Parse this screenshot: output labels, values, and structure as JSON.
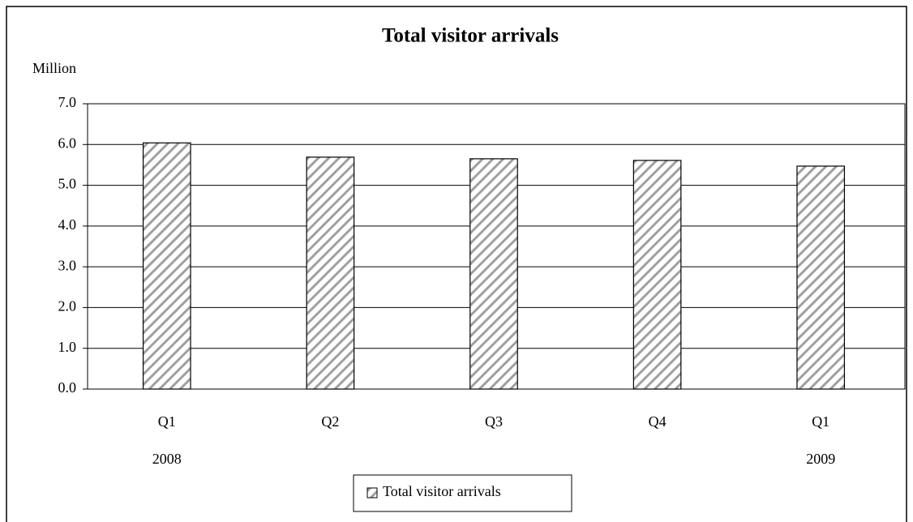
{
  "chart_data": {
    "type": "bar",
    "title": "Total visitor arrivals",
    "y_axis_label": "Million",
    "categories": [
      "Q1",
      "Q2",
      "Q3",
      "Q4",
      "Q1"
    ],
    "years": [
      "2008",
      null,
      null,
      null,
      "2009"
    ],
    "series": [
      {
        "name": "Total visitor arrivals",
        "color": "#a0a0a0",
        "values": [
          6.04,
          5.69,
          5.65,
          5.61,
          5.47
        ]
      }
    ],
    "ylim": [
      0,
      7
    ],
    "yticks": [
      {
        "value": 0,
        "label": "0.0"
      },
      {
        "value": 1,
        "label": "1.0"
      },
      {
        "value": 2,
        "label": "2.0"
      },
      {
        "value": 3,
        "label": "3.0"
      },
      {
        "value": 4,
        "label": "4.0"
      },
      {
        "value": 5,
        "label": "5.0"
      },
      {
        "value": 6,
        "label": "6.0"
      },
      {
        "value": 7,
        "label": "7.0"
      }
    ],
    "grid": true,
    "legend": "bottom"
  }
}
